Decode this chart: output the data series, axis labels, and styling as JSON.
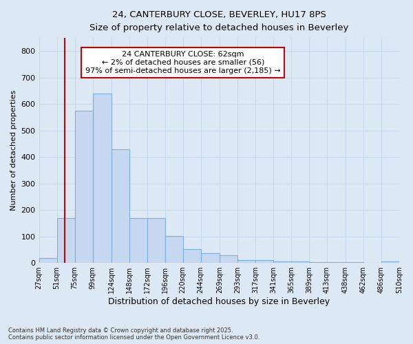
{
  "title_line1": "24, CANTERBURY CLOSE, BEVERLEY, HU17 8PS",
  "title_line2": "Size of property relative to detached houses in Beverley",
  "xlabel": "Distribution of detached houses by size in Beverley",
  "ylabel": "Number of detached properties",
  "bar_edges": [
    27,
    51,
    75,
    99,
    124,
    148,
    172,
    196,
    220,
    244,
    269,
    293,
    317,
    341,
    365,
    389,
    413,
    438,
    462,
    486,
    510
  ],
  "bar_heights": [
    20,
    170,
    575,
    640,
    430,
    170,
    170,
    102,
    52,
    37,
    30,
    12,
    10,
    5,
    5,
    3,
    3,
    2,
    0,
    7
  ],
  "bar_color": "#c5d8f0",
  "bar_edge_color": "#7aaedc",
  "grid_color": "#c8d8ea",
  "vline_x": 62,
  "vline_color": "#cc0000",
  "annotation_text": "24 CANTERBURY CLOSE: 62sqm\n← 2% of detached houses are smaller (56)\n97% of semi-detached houses are larger (2,185) →",
  "annotation_box_color": "#ffffff",
  "annotation_box_edge": "#cc0000",
  "ylim": [
    0,
    850
  ],
  "yticks": [
    0,
    100,
    200,
    300,
    400,
    500,
    600,
    700,
    800
  ],
  "tick_labels": [
    "27sqm",
    "51sqm",
    "75sqm",
    "99sqm",
    "124sqm",
    "148sqm",
    "172sqm",
    "196sqm",
    "220sqm",
    "244sqm",
    "269sqm",
    "293sqm",
    "317sqm",
    "341sqm",
    "365sqm",
    "389sqm",
    "413sqm",
    "438sqm",
    "462sqm",
    "486sqm",
    "510sqm"
  ],
  "footer_line1": "Contains HM Land Registry data © Crown copyright and database right 2025.",
  "footer_line2": "Contains public sector information licensed under the Open Government Licence v3.0.",
  "bg_color": "#dde8f5"
}
